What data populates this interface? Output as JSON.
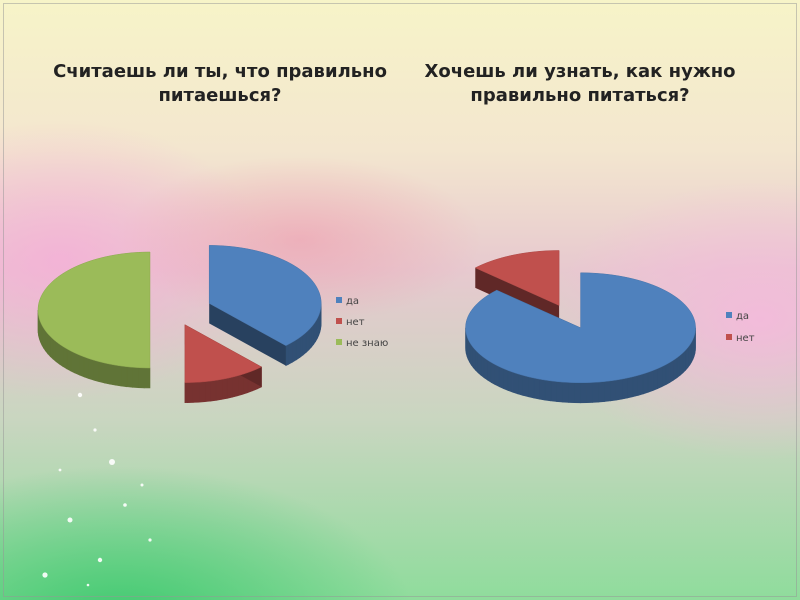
{
  "chart_data": [
    {
      "type": "pie",
      "title": "Считаешь ли ты, что правильно питаешься?",
      "categories": [
        "да",
        "нет",
        "не знаю"
      ],
      "values": [
        38,
        12,
        50
      ],
      "colors": [
        "#4f81bd",
        "#c0504d",
        "#9bbb59"
      ],
      "legend": "right"
    },
    {
      "type": "pie",
      "title": "Хочешь ли узнать, как нужно правильно питаться?",
      "categories": [
        "да",
        "нет"
      ],
      "values": [
        87,
        13
      ],
      "colors": [
        "#4f81bd",
        "#c0504d"
      ],
      "legend": "right"
    }
  ]
}
